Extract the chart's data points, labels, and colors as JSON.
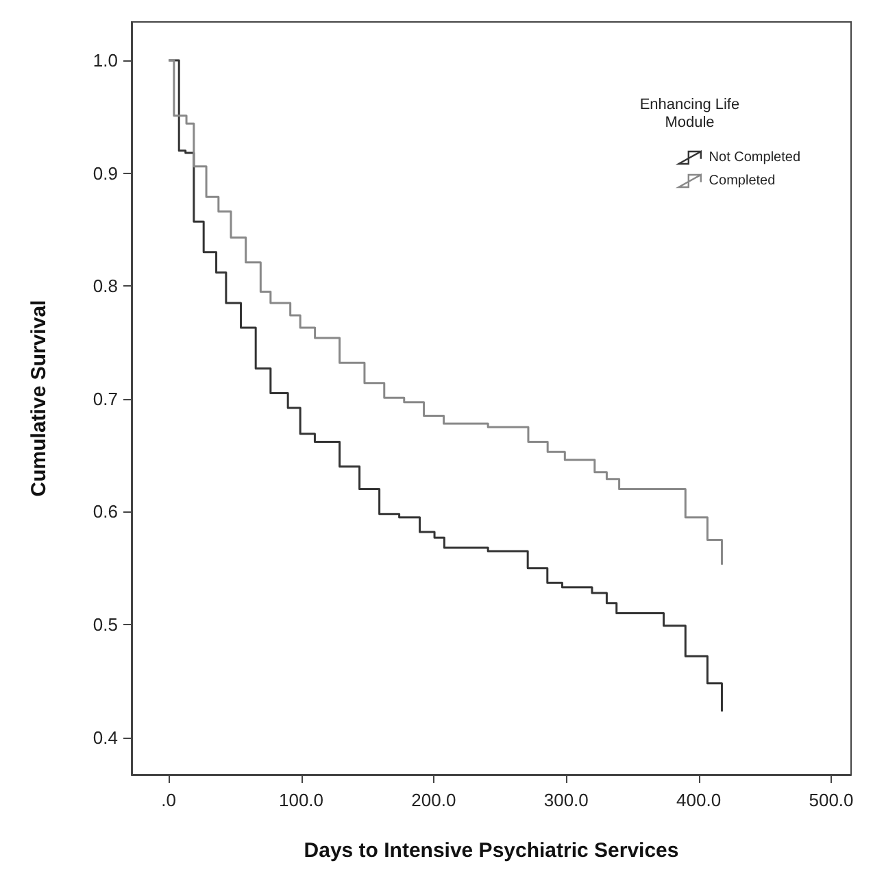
{
  "chart_data": {
    "type": "step",
    "xlabel": "Days to Intensive Psychiatric Services",
    "ylabel": "Cumulative Survival",
    "legend_title": "Enhancing Life\nModule",
    "legend": "top right",
    "grid": false,
    "marker": "none",
    "xlim": [
      -28,
      515
    ],
    "ylim": [
      0.367,
      1.034
    ],
    "xticks": [
      {
        "value": 0,
        "label": ".0"
      },
      {
        "value": 100,
        "label": "100.0"
      },
      {
        "value": 200,
        "label": "200.0"
      },
      {
        "value": 300,
        "label": "300.0"
      },
      {
        "value": 400,
        "label": "400.0"
      },
      {
        "value": 500,
        "label": "500.0"
      }
    ],
    "yticks": [
      {
        "value": 0.4,
        "label": "0.4"
      },
      {
        "value": 0.5,
        "label": "0.5"
      },
      {
        "value": 0.6,
        "label": "0.6"
      },
      {
        "value": 0.7,
        "label": "0.7"
      },
      {
        "value": 0.8,
        "label": "0.8"
      },
      {
        "value": 0.9,
        "label": "0.9"
      },
      {
        "value": 1,
        "label": "1.0"
      }
    ],
    "series": [
      {
        "name": "Not Completed",
        "color": "#333333",
        "x": [
          0,
          7.8,
          12.7,
          19,
          26.4,
          35.9,
          43.3,
          54.5,
          65.7,
          76.9,
          90,
          99.3,
          110.3,
          129,
          144,
          159,
          174,
          189.5,
          200.6,
          208,
          241,
          259.7,
          271,
          285.8,
          297,
          319.5,
          330.6,
          338,
          373.6,
          390,
          406.6,
          417.5
        ],
        "values": [
          1.0,
          0.92,
          0.918,
          0.857,
          0.83,
          0.812,
          0.785,
          0.763,
          0.727,
          0.705,
          0.692,
          0.669,
          0.662,
          0.64,
          0.62,
          0.598,
          0.595,
          0.582,
          0.577,
          0.568,
          0.565,
          0.565,
          0.55,
          0.537,
          0.533,
          0.528,
          0.519,
          0.51,
          0.499,
          0.472,
          0.448,
          0.423
        ]
      },
      {
        "name": "Completed",
        "color": "#888888",
        "x": [
          0,
          4,
          13.4,
          19,
          28.4,
          37.6,
          47,
          58.2,
          69.4,
          76.9,
          91.8,
          99.3,
          110.4,
          129,
          147.8,
          162.7,
          177.7,
          192.6,
          207.6,
          241,
          261.7,
          271.4,
          286,
          299,
          321.5,
          330.6,
          340,
          373.6,
          390,
          406.6,
          417.5
        ],
        "values": [
          1.0,
          0.951,
          0.944,
          0.906,
          0.879,
          0.866,
          0.843,
          0.821,
          0.795,
          0.785,
          0.774,
          0.763,
          0.754,
          0.732,
          0.714,
          0.701,
          0.697,
          0.685,
          0.678,
          0.675,
          0.675,
          0.662,
          0.653,
          0.646,
          0.635,
          0.629,
          0.62,
          0.62,
          0.595,
          0.575,
          0.553
        ]
      }
    ]
  }
}
